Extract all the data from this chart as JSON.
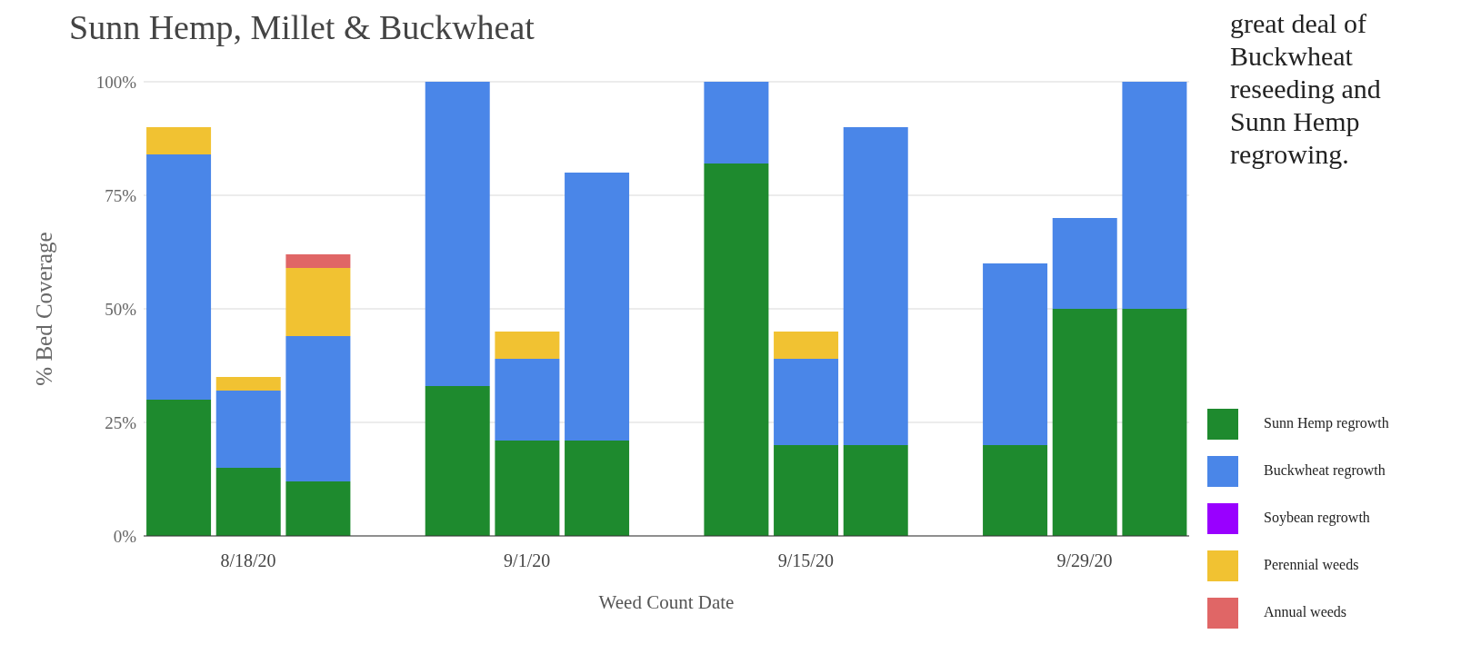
{
  "chart_data": {
    "type": "bar",
    "title": "Sunn Hemp, Millet & Buckwheat",
    "xlabel": "Weed Count Date",
    "ylabel": "% Bed Coverage",
    "annotations": [
      "great deal of Buckwheat reseeding and Sunn Hemp regrowing."
    ],
    "categories": [
      null,
      "8/18/20",
      null,
      null,
      null,
      "9/1/20",
      null,
      null,
      null,
      "9/15/20",
      null,
      null,
      null,
      "9/29/20",
      null
    ],
    "stacked": true,
    "ylim": [
      0,
      100
    ],
    "yticks": [
      {
        "value": 0,
        "label": "0%"
      },
      {
        "value": 25,
        "label": "25%"
      },
      {
        "value": 50,
        "label": "50%"
      },
      {
        "value": 75,
        "label": "75%"
      },
      {
        "value": 100,
        "label": "100%"
      }
    ],
    "grid": "y",
    "legend": "bottom right",
    "series": [
      {
        "name": "Sunn Hemp regrowth",
        "color": "#1e8a2e",
        "values": [
          30,
          15,
          12,
          null,
          33,
          21,
          21,
          null,
          82,
          20,
          20,
          null,
          20,
          50,
          50
        ]
      },
      {
        "name": "Buckwheat regrowth",
        "color": "#4a86e8",
        "values": [
          54,
          17,
          32,
          null,
          67,
          18,
          59,
          null,
          18,
          19,
          70,
          null,
          40,
          20,
          50
        ]
      },
      {
        "name": "Soybean regrowth",
        "color": "#9900ff",
        "values": [
          null,
          null,
          null,
          null,
          null,
          null,
          null,
          null,
          null,
          null,
          null,
          null,
          null,
          null,
          null
        ]
      },
      {
        "name": "Perennial weeds",
        "color": "#f1c232",
        "values": [
          6,
          3,
          15,
          null,
          null,
          6,
          null,
          null,
          null,
          6,
          null,
          null,
          null,
          null,
          null
        ]
      },
      {
        "name": "Annual weeds",
        "color": "#e06666",
        "values": [
          null,
          null,
          3,
          null,
          null,
          null,
          null,
          null,
          null,
          null,
          null,
          null,
          null,
          null,
          null
        ]
      }
    ]
  }
}
